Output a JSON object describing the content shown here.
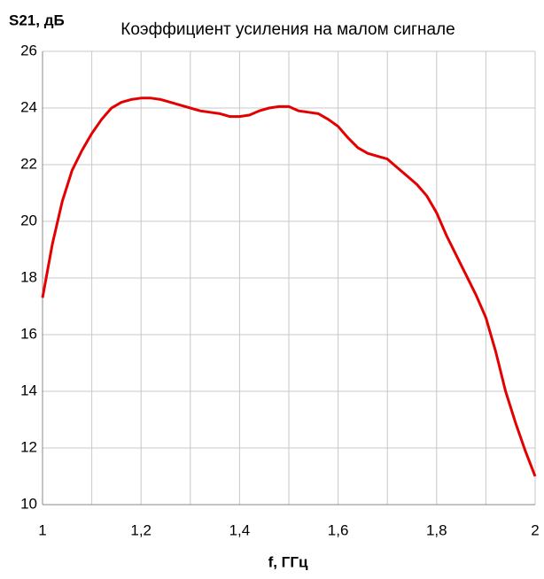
{
  "chart_data": {
    "type": "line",
    "title": "Коэффициент усиления на малом сигнале",
    "ylabel": "S21, дБ",
    "xlabel": "f, ГГц",
    "x": [
      1.0,
      1.02,
      1.04,
      1.06,
      1.08,
      1.1,
      1.12,
      1.14,
      1.16,
      1.18,
      1.2,
      1.22,
      1.24,
      1.26,
      1.28,
      1.3,
      1.32,
      1.34,
      1.36,
      1.38,
      1.4,
      1.42,
      1.44,
      1.46,
      1.48,
      1.5,
      1.52,
      1.54,
      1.56,
      1.58,
      1.6,
      1.62,
      1.64,
      1.66,
      1.68,
      1.7,
      1.72,
      1.74,
      1.76,
      1.78,
      1.8,
      1.82,
      1.84,
      1.86,
      1.88,
      1.9,
      1.92,
      1.94,
      1.96,
      1.98,
      2.0
    ],
    "series": [
      {
        "color": "#e30000",
        "values": [
          17.3,
          19.2,
          20.7,
          21.8,
          22.5,
          23.1,
          23.6,
          24.0,
          24.2,
          24.3,
          24.35,
          24.35,
          24.3,
          24.2,
          24.1,
          24.0,
          23.9,
          23.85,
          23.8,
          23.7,
          23.7,
          23.75,
          23.9,
          24.0,
          24.05,
          24.05,
          23.9,
          23.85,
          23.8,
          23.6,
          23.35,
          22.95,
          22.6,
          22.4,
          22.3,
          22.2,
          21.9,
          21.6,
          21.3,
          20.9,
          20.3,
          19.5,
          18.8,
          18.1,
          17.4,
          16.6,
          15.4,
          14.0,
          12.9,
          11.9,
          11.0
        ]
      }
    ],
    "xlim": [
      1,
      2
    ],
    "xticks": [
      1,
      {
        "value": 1.2,
        "label": "1,2"
      },
      {
        "value": 1.4,
        "label": "1,4"
      },
      {
        "value": 1.6,
        "label": "1,6"
      },
      {
        "value": 1.8,
        "label": "1,8"
      },
      2
    ],
    "x_minor_ticks": [
      1.1,
      1.3,
      1.5,
      1.7,
      1.9
    ],
    "ylim": [
      10,
      26
    ],
    "yticks": [
      10,
      12,
      14,
      16,
      18,
      20,
      22,
      24,
      26
    ],
    "grid": true
  }
}
